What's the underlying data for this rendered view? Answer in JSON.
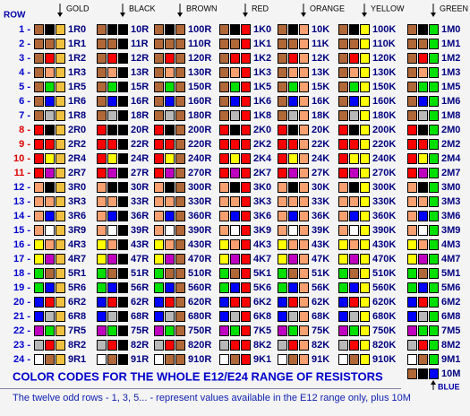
{
  "header_label": "ROW",
  "columns": [
    {
      "name": "GOLD",
      "color": "#f0c040"
    },
    {
      "name": "BLACK",
      "color": "#000000"
    },
    {
      "name": "BROWN",
      "color": "#b06838"
    },
    {
      "name": "RED",
      "color": "#ff0000"
    },
    {
      "name": "ORANGE",
      "color": "#f8a070"
    },
    {
      "name": "YELLOW",
      "color": "#ffff00"
    },
    {
      "name": "GREEN",
      "color": "#00e000"
    }
  ],
  "rows": [
    {
      "label": "1 -",
      "label_color": "#0000cc",
      "bands": [
        "#b06838",
        "#000000"
      ],
      "values": [
        "1R0",
        "10R",
        "100R",
        "1K0",
        "10K",
        "100K",
        "1M0"
      ]
    },
    {
      "label": "2 -",
      "label_color": "#0000cc",
      "bands": [
        "#b06838",
        "#b06838"
      ],
      "values": [
        "1R1",
        "11R",
        "110R",
        "1K1",
        "11K",
        "110K",
        "1M1"
      ]
    },
    {
      "label": "3 -",
      "label_color": "#0000cc",
      "bands": [
        "#b06838",
        "#ff0000"
      ],
      "values": [
        "1R2",
        "12R",
        "120R",
        "1K2",
        "12K",
        "120K",
        "1M2"
      ]
    },
    {
      "label": "4 -",
      "label_color": "#0000cc",
      "bands": [
        "#b06838",
        "#f8a070"
      ],
      "values": [
        "1R3",
        "13R",
        "130R",
        "1K3",
        "13K",
        "130K",
        "1M3"
      ]
    },
    {
      "label": "5 -",
      "label_color": "#0000cc",
      "bands": [
        "#b06838",
        "#00e000"
      ],
      "values": [
        "1R5",
        "15R",
        "150R",
        "1K5",
        "15K",
        "150K",
        "1M5"
      ]
    },
    {
      "label": "6 -",
      "label_color": "#0000cc",
      "bands": [
        "#b06838",
        "#0000ff"
      ],
      "values": [
        "1R6",
        "16R",
        "160R",
        "1K6",
        "16K",
        "160K",
        "1M6"
      ]
    },
    {
      "label": "7 -",
      "label_color": "#0000cc",
      "bands": [
        "#b06838",
        "#b8b8b8"
      ],
      "values": [
        "1R8",
        "18R",
        "180R",
        "1K8",
        "18K",
        "180K",
        "1M8"
      ]
    },
    {
      "label": "8 -",
      "label_color": "#dd0000",
      "bands": [
        "#ff0000",
        "#000000"
      ],
      "values": [
        "2R0",
        "20R",
        "200R",
        "2K0",
        "20K",
        "200K",
        "2M0"
      ]
    },
    {
      "label": "9 -",
      "label_color": "#dd0000",
      "bands": [
        "#ff0000",
        "#ff0000"
      ],
      "values": [
        "2R2",
        "22R",
        "220R",
        "2K2",
        "22K",
        "220K",
        "2M2"
      ]
    },
    {
      "label": "10 -",
      "label_color": "#dd0000",
      "bands": [
        "#ff0000",
        "#ffff00"
      ],
      "values": [
        "2R4",
        "24R",
        "240R",
        "2K4",
        "24K",
        "240K",
        "2M4"
      ]
    },
    {
      "label": "11 -",
      "label_color": "#dd0000",
      "bands": [
        "#ff0000",
        "#c000c0"
      ],
      "values": [
        "2R7",
        "27R",
        "270R",
        "2K7",
        "27K",
        "270K",
        "2M7"
      ]
    },
    {
      "label": "12 -",
      "label_color": "#0000cc",
      "bands": [
        "#f8a070",
        "#000000"
      ],
      "values": [
        "3R0",
        "30R",
        "300R",
        "3K0",
        "30K",
        "300K",
        "3M0"
      ]
    },
    {
      "label": "13 -",
      "label_color": "#0000cc",
      "bands": [
        "#f8a070",
        "#f8a070"
      ],
      "values": [
        "3R3",
        "33R",
        "330R",
        "3K3",
        "33K",
        "330K",
        "3M3"
      ]
    },
    {
      "label": "14 -",
      "label_color": "#0000cc",
      "bands": [
        "#f8a070",
        "#0000ff"
      ],
      "values": [
        "3R6",
        "36R",
        "360R",
        "3K6",
        "36K",
        "360K",
        "3M6"
      ]
    },
    {
      "label": "15 -",
      "label_color": "#0000cc",
      "bands": [
        "#f8a070",
        "#ffffff"
      ],
      "values": [
        "3R9",
        "39R",
        "390R",
        "3K9",
        "39K",
        "390K",
        "3M9"
      ]
    },
    {
      "label": "16 -",
      "label_color": "#0000cc",
      "bands": [
        "#ffff00",
        "#f8a070"
      ],
      "values": [
        "4R3",
        "43R",
        "430R",
        "4K3",
        "43K",
        "430K",
        "4M3"
      ]
    },
    {
      "label": "17 -",
      "label_color": "#0000cc",
      "bands": [
        "#ffff00",
        "#c000c0"
      ],
      "values": [
        "4R7",
        "47R",
        "470R",
        "4K7",
        "47K",
        "470K",
        "4M7"
      ]
    },
    {
      "label": "18 -",
      "label_color": "#0000cc",
      "bands": [
        "#00e000",
        "#b06838"
      ],
      "values": [
        "5R1",
        "51R",
        "510R",
        "5K1",
        "51K",
        "510K",
        "5M1"
      ]
    },
    {
      "label": "19 -",
      "label_color": "#0000cc",
      "bands": [
        "#00e000",
        "#0000ff"
      ],
      "values": [
        "5R6",
        "56R",
        "560R",
        "5K6",
        "56K",
        "560K",
        "5M6"
      ]
    },
    {
      "label": "20 -",
      "label_color": "#0000cc",
      "bands": [
        "#0000ff",
        "#ff0000"
      ],
      "values": [
        "6R2",
        "62R",
        "620R",
        "6K2",
        "62K",
        "620K",
        "6M2"
      ]
    },
    {
      "label": "21 -",
      "label_color": "#0000cc",
      "bands": [
        "#0000ff",
        "#b8b8b8"
      ],
      "values": [
        "6R8",
        "68R",
        "680R",
        "6K8",
        "68K",
        "680K",
        "6M8"
      ]
    },
    {
      "label": "22 -",
      "label_color": "#0000cc",
      "bands": [
        "#c000c0",
        "#00e000"
      ],
      "values": [
        "7R5",
        "75R",
        "750R",
        "7K5",
        "75K",
        "750K",
        "7M5"
      ]
    },
    {
      "label": "23 -",
      "label_color": "#0000cc",
      "bands": [
        "#b8b8b8",
        "#ff0000"
      ],
      "values": [
        "8R2",
        "82R",
        "820R",
        "8K2",
        "82K",
        "820K",
        "8M2"
      ]
    },
    {
      "label": "24 -",
      "label_color": "#0000cc",
      "bands": [
        "#ffffff",
        "#b06838"
      ],
      "values": [
        "9R1",
        "91R",
        "910R",
        "9K1",
        "91K",
        "910K",
        "9M1"
      ]
    }
  ],
  "extra": {
    "bands": [
      "#b06838",
      "#000000",
      "#0000ff"
    ],
    "value": "10M",
    "note": "BLUE"
  },
  "title": "COLOR CODES FOR THE WHOLE E12/E24 RANGE OF RESISTORS",
  "footer": "The twelve odd rows - 1, 3, 5... - represent values available in the E12 range only, plus 10M"
}
